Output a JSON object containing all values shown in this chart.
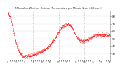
{
  "title": "Milwaukee Weather Outdoor Temperature per Minute (Last 24 Hours)",
  "background_color": "#ffffff",
  "plot_background": "#ffffff",
  "grid_color": "#cccccc",
  "line_color": "#ff0000",
  "marker_color": "#ff0000",
  "ylim": [
    22,
    88
  ],
  "ytick_values": [
    30,
    40,
    50,
    60,
    70,
    80
  ],
  "ytick_labels": [
    "30",
    "40",
    "50",
    "60",
    "70",
    "80"
  ],
  "num_points": 1440,
  "temperature_profile": [
    85,
    83,
    80,
    76,
    71,
    65,
    58,
    51,
    45,
    40,
    36,
    33,
    31,
    29,
    28,
    27,
    27,
    27,
    27,
    27,
    27,
    27,
    27,
    28,
    28,
    29,
    29,
    30,
    30,
    31,
    32,
    32,
    33,
    33,
    34,
    35,
    36,
    37,
    38,
    39,
    40,
    41,
    43,
    45,
    47,
    49,
    51,
    53,
    56,
    58,
    61,
    63,
    65,
    66,
    67,
    68,
    69,
    70,
    70,
    69,
    68,
    67,
    65,
    63,
    60,
    57,
    54,
    52,
    50,
    49,
    48,
    47,
    47,
    47,
    47,
    48,
    48,
    49,
    49,
    50,
    51,
    52,
    53,
    54,
    55,
    55,
    55,
    55,
    55,
    55,
    55,
    55,
    55,
    55,
    55,
    55,
    55,
    55,
    55,
    55
  ],
  "vlines_x": [
    0.25,
    0.5,
    0.75
  ],
  "vline_color": "#aaaaaa",
  "num_xticks": 48
}
